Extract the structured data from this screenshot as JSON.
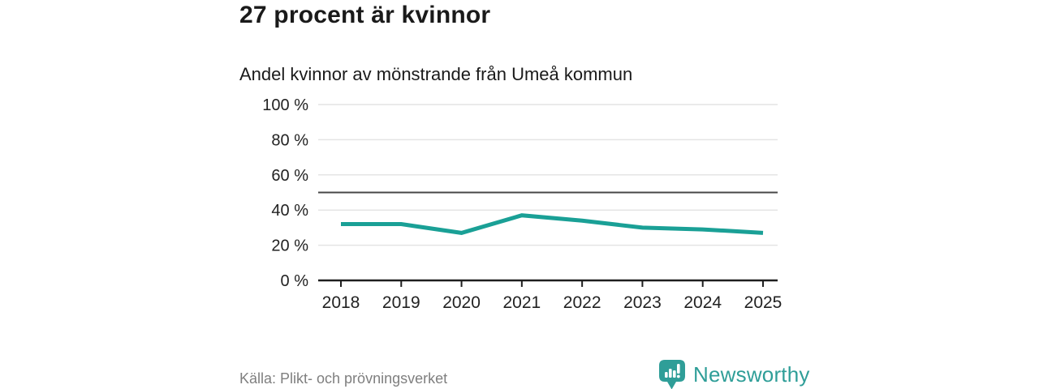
{
  "chart_data": {
    "type": "line",
    "title": "27 procent är kvinnor",
    "subtitle": "Andel kvinnor av mönstrande från Umeå kommun",
    "categories": [
      "2018",
      "2019",
      "2020",
      "2021",
      "2022",
      "2023",
      "2024",
      "2025"
    ],
    "values": [
      32,
      32,
      27,
      37,
      34,
      30,
      29,
      27
    ],
    "series_name": "Andel kvinnor av mönstrande",
    "xlabel": "",
    "ylabel": "",
    "ylim": [
      0,
      100
    ],
    "yticks": [
      0,
      20,
      40,
      60,
      80,
      100
    ],
    "ytick_suffix": " %",
    "reference_line": 50,
    "grid": true,
    "legend": "none",
    "line_color": "#1aa096",
    "grid_color": "#e4e4e4",
    "reference_line_color": "#474747",
    "axis_color": "#1f1f1f",
    "tick_label_color": "#222222",
    "source_note": "Källa: Plikt- och prövningsverket"
  },
  "footer": {
    "brand": "Newsworthy",
    "brand_color": "#2f9e98",
    "logo_icon": "bar-chart-pin-icon"
  }
}
